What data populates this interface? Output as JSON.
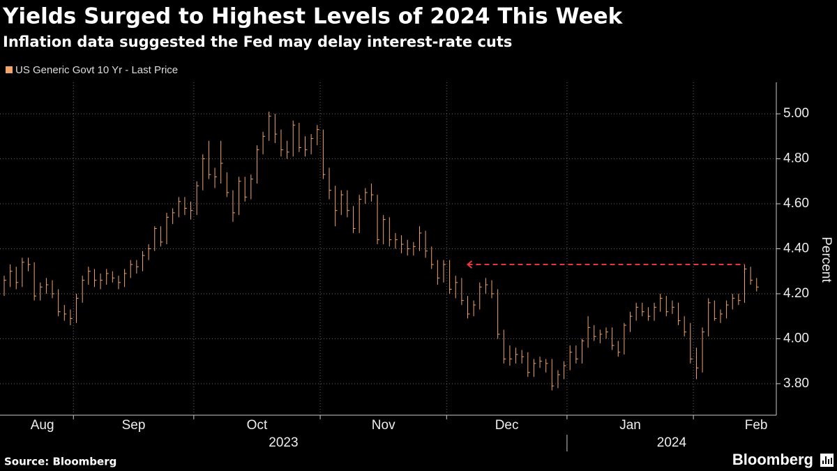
{
  "chart_data": {
    "type": "hlc",
    "title": "Yields Surged to Highest Levels of 2024 This Week",
    "subtitle": "Inflation data suggested the Fed may delay interest-rate cuts",
    "y_label": "Percent",
    "source": "Source: Bloomberg",
    "brand": "Bloomberg",
    "series": [
      {
        "name": "US Generic Govt 10 Yr - Last Price",
        "color": "#f2a56b",
        "high": [
          4.28,
          4.33,
          4.32,
          4.36,
          4.36,
          4.34,
          4.25,
          4.27,
          4.26,
          4.22,
          4.15,
          4.13,
          4.2,
          4.28,
          4.32,
          4.31,
          4.29,
          4.31,
          4.3,
          4.28,
          4.31,
          4.35,
          4.35,
          4.39,
          4.42,
          4.5,
          4.5,
          4.56,
          4.58,
          4.63,
          4.63,
          4.61,
          4.7,
          4.82,
          4.88,
          4.76,
          4.88,
          4.74,
          4.66,
          4.72,
          4.72,
          4.73,
          4.86,
          4.92,
          5.01,
          5.0,
          4.93,
          4.88,
          4.97,
          4.96,
          4.9,
          4.91,
          4.95,
          4.93,
          4.76,
          4.68,
          4.66,
          4.66,
          4.59,
          4.64,
          4.67,
          4.69,
          4.64,
          4.55,
          4.54,
          4.47,
          4.46,
          4.44,
          4.43,
          4.5,
          4.48,
          4.41,
          4.35,
          4.35,
          4.35,
          4.28,
          4.27,
          4.19,
          4.17,
          4.25,
          4.27,
          4.26,
          4.22,
          4.04,
          3.97,
          3.96,
          3.95,
          3.94,
          3.91,
          3.92,
          3.91,
          3.91,
          3.86,
          3.9,
          3.97,
          3.97,
          4.0,
          4.1,
          4.06,
          4.04,
          4.05,
          4.05,
          3.99,
          4.07,
          4.12,
          4.16,
          4.16,
          4.14,
          4.16,
          4.2,
          4.19,
          4.17,
          4.16,
          4.1,
          4.07,
          3.96,
          4.05,
          4.18,
          4.17,
          4.13,
          4.17,
          4.2,
          4.2,
          4.33,
          4.32,
          4.27
        ],
        "low": [
          4.19,
          4.23,
          4.22,
          4.23,
          4.3,
          4.17,
          4.17,
          4.2,
          4.18,
          4.1,
          4.08,
          4.06,
          4.07,
          4.16,
          4.24,
          4.23,
          4.22,
          4.24,
          4.25,
          4.22,
          4.23,
          4.27,
          4.29,
          4.3,
          4.35,
          4.39,
          4.41,
          4.42,
          4.51,
          4.54,
          4.55,
          4.53,
          4.55,
          4.66,
          4.71,
          4.67,
          4.69,
          4.63,
          4.52,
          4.55,
          4.61,
          4.62,
          4.69,
          4.82,
          4.88,
          4.87,
          4.81,
          4.8,
          4.81,
          4.83,
          4.81,
          4.82,
          4.86,
          4.71,
          4.62,
          4.5,
          4.55,
          4.54,
          4.47,
          4.47,
          4.6,
          4.61,
          4.42,
          4.42,
          4.41,
          4.4,
          4.38,
          4.37,
          4.37,
          4.39,
          4.36,
          4.31,
          4.24,
          4.25,
          4.2,
          4.18,
          4.15,
          4.09,
          4.1,
          4.13,
          4.2,
          4.18,
          4.0,
          3.89,
          3.88,
          3.89,
          3.89,
          3.83,
          3.83,
          3.87,
          3.85,
          3.77,
          3.78,
          3.82,
          3.86,
          3.89,
          3.89,
          3.96,
          3.99,
          3.98,
          4.0,
          3.95,
          3.92,
          3.93,
          4.03,
          4.08,
          4.1,
          4.08,
          4.08,
          4.12,
          4.1,
          4.11,
          4.06,
          4.01,
          3.89,
          3.82,
          3.85,
          4.01,
          4.08,
          4.07,
          4.09,
          4.13,
          4.15,
          4.16,
          4.24,
          4.21
        ],
        "close": [
          4.26,
          4.3,
          4.25,
          4.34,
          4.33,
          4.19,
          4.23,
          4.24,
          4.2,
          4.12,
          4.11,
          4.09,
          4.18,
          4.26,
          4.3,
          4.26,
          4.26,
          4.29,
          4.27,
          4.25,
          4.29,
          4.33,
          4.32,
          4.37,
          4.4,
          4.49,
          4.43,
          4.54,
          4.56,
          4.61,
          4.58,
          4.57,
          4.68,
          4.8,
          4.73,
          4.72,
          4.78,
          4.65,
          4.56,
          4.7,
          4.63,
          4.71,
          4.84,
          4.9,
          4.99,
          4.91,
          4.84,
          4.83,
          4.95,
          4.85,
          4.84,
          4.89,
          4.93,
          4.73,
          4.66,
          4.57,
          4.64,
          4.57,
          4.49,
          4.62,
          4.65,
          4.64,
          4.44,
          4.53,
          4.44,
          4.44,
          4.42,
          4.4,
          4.41,
          4.47,
          4.39,
          4.33,
          4.27,
          4.33,
          4.22,
          4.25,
          4.17,
          4.11,
          4.15,
          4.23,
          4.24,
          4.2,
          4.02,
          3.91,
          3.91,
          3.93,
          3.92,
          3.85,
          3.89,
          3.9,
          3.89,
          3.79,
          3.84,
          3.88,
          3.94,
          3.91,
          3.99,
          4.05,
          4.01,
          4.02,
          4.03,
          3.97,
          3.94,
          4.06,
          4.1,
          4.14,
          4.12,
          4.1,
          4.14,
          4.18,
          4.12,
          4.14,
          4.08,
          4.03,
          3.91,
          3.87,
          4.03,
          4.16,
          4.09,
          4.11,
          4.15,
          4.18,
          4.17,
          4.31,
          4.26,
          4.23
        ]
      }
    ],
    "xticks": [
      {
        "value": 0,
        "label": "Aug"
      },
      {
        "value": 12,
        "label": "Sep"
      },
      {
        "value": 32,
        "label": "Oct"
      },
      {
        "value": 53,
        "label": "Nov"
      },
      {
        "value": 74,
        "label": "Dec"
      },
      {
        "value": 94,
        "label": "Jan"
      },
      {
        "value": 115,
        "label": "Feb"
      }
    ],
    "xyears": [
      {
        "value": 0,
        "label": "2023"
      },
      {
        "value": 94,
        "label": "2024"
      }
    ],
    "ylim": [
      3.66,
      5.14
    ],
    "yticks": [
      {
        "value": 3.8,
        "label": "3.80"
      },
      {
        "value": 4.0,
        "label": "4.00"
      },
      {
        "value": 4.2,
        "label": "4.20"
      },
      {
        "value": 4.4,
        "label": "4.40"
      },
      {
        "value": 4.6,
        "label": "4.60"
      },
      {
        "value": 4.8,
        "label": "4.80"
      },
      {
        "value": 5.0,
        "label": "5.00"
      }
    ],
    "grid": true,
    "reference_line": {
      "value": 4.33,
      "start": 77,
      "end": 123,
      "color": "#e8363a"
    }
  }
}
